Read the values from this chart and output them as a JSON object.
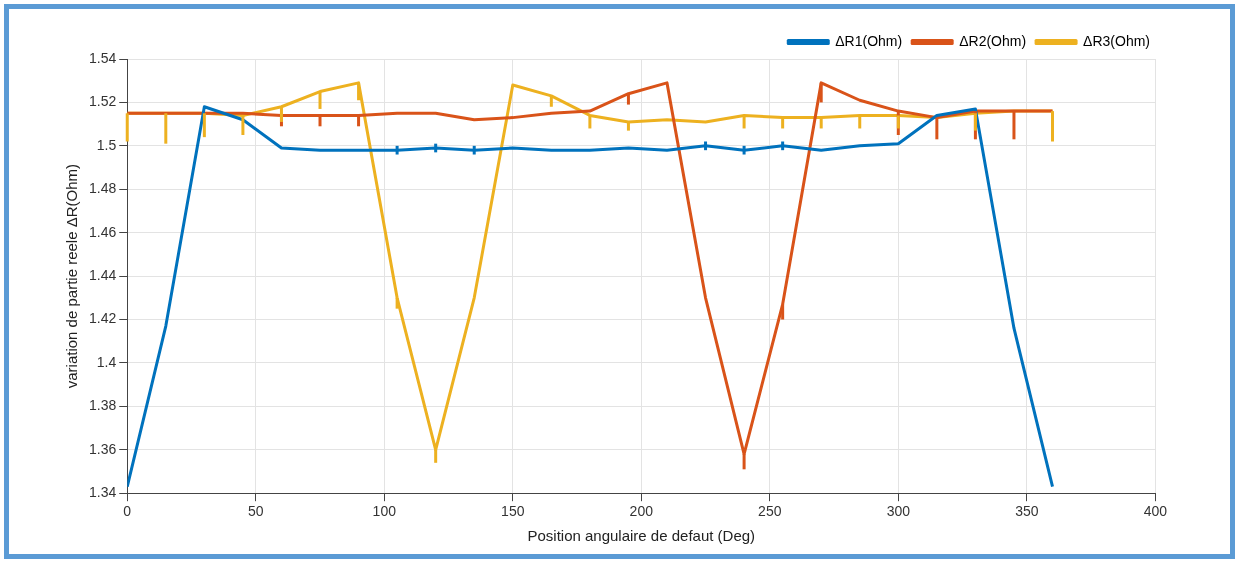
{
  "chart_data": {
    "type": "line",
    "xlabel": "Position angulaire de defaut (Deg)",
    "ylabel": "variation de partie reele ΔR(Ohm)",
    "x": [
      0,
      15,
      30,
      45,
      60,
      75,
      90,
      105,
      120,
      135,
      150,
      165,
      180,
      195,
      210,
      225,
      240,
      255,
      270,
      285,
      300,
      315,
      330,
      345,
      360
    ],
    "series": [
      {
        "name": "ΔR1(Ohm)",
        "color": "#0072bd",
        "values": [
          1.343,
          1.417,
          1.518,
          1.512,
          1.499,
          1.498,
          1.498,
          1.498,
          1.499,
          1.498,
          1.499,
          1.498,
          1.498,
          1.499,
          1.498,
          1.5,
          1.498,
          1.5,
          1.498,
          1.5,
          1.501,
          1.514,
          1.517,
          1.416,
          1.343
        ],
        "errors": [
          null,
          null,
          null,
          null,
          null,
          null,
          null,
          [
            1.496,
            1.5
          ],
          [
            1.497,
            1.501
          ],
          [
            1.496,
            1.5
          ],
          null,
          null,
          null,
          null,
          null,
          [
            1.498,
            1.502
          ],
          [
            1.496,
            1.5
          ],
          [
            1.498,
            1.502
          ],
          null,
          null,
          null,
          null,
          null,
          null,
          null
        ]
      },
      {
        "name": "ΔR2(Ohm)",
        "color": "#d95319",
        "values": [
          1.515,
          1.515,
          1.515,
          1.515,
          1.514,
          1.514,
          1.514,
          1.515,
          1.515,
          1.512,
          1.513,
          1.515,
          1.516,
          1.524,
          1.529,
          1.43,
          1.358,
          1.427,
          1.529,
          1.521,
          1.516,
          1.513,
          1.516,
          1.516,
          1.516
        ],
        "errors": [
          null,
          null,
          null,
          null,
          [
            1.509,
            1.514
          ],
          [
            1.509,
            1.514
          ],
          [
            1.509,
            1.514
          ],
          null,
          null,
          null,
          null,
          null,
          null,
          [
            1.519,
            1.524
          ],
          null,
          null,
          [
            1.351,
            1.358
          ],
          [
            1.42,
            1.427
          ],
          [
            1.52,
            1.529
          ],
          null,
          [
            1.505,
            1.516
          ],
          [
            1.503,
            1.513
          ],
          [
            1.503,
            1.516
          ],
          [
            1.503,
            1.516
          ],
          null
        ]
      },
      {
        "name": "ΔR3(Ohm)",
        "color": "#edb120",
        "values": [
          1.515,
          1.515,
          1.515,
          1.514,
          1.518,
          1.525,
          1.529,
          1.43,
          1.36,
          1.43,
          1.528,
          1.523,
          1.514,
          1.511,
          1.512,
          1.511,
          1.514,
          1.513,
          1.513,
          1.514,
          1.514,
          1.513,
          1.515,
          1.516,
          1.516
        ],
        "errors": [
          [
            1.502,
            1.515
          ],
          [
            1.501,
            1.515
          ],
          [
            1.504,
            1.515
          ],
          [
            1.505,
            1.514
          ],
          [
            1.511,
            1.518
          ],
          [
            1.517,
            1.525
          ],
          [
            1.521,
            1.529
          ],
          [
            1.425,
            1.43
          ],
          [
            1.354,
            1.36
          ],
          null,
          null,
          [
            1.518,
            1.523
          ],
          [
            1.508,
            1.514
          ],
          [
            1.507,
            1.511
          ],
          null,
          null,
          [
            1.508,
            1.514
          ],
          [
            1.508,
            1.513
          ],
          [
            1.508,
            1.513
          ],
          [
            1.508,
            1.514
          ],
          [
            1.508,
            1.514
          ],
          null,
          [
            1.507,
            1.515
          ],
          null,
          [
            1.502,
            1.516
          ]
        ]
      }
    ],
    "xlim": [
      0,
      400
    ],
    "xticks": [
      0,
      50,
      100,
      150,
      200,
      250,
      300,
      350,
      400
    ],
    "ylim": [
      1.34,
      1.54
    ],
    "yticks": [
      1.34,
      1.36,
      1.38,
      1.4,
      1.42,
      1.44,
      1.46,
      1.48,
      1.5,
      1.52,
      1.54
    ],
    "grid": true,
    "legend": "top right",
    "marker": "none",
    "line_style": "solid"
  }
}
